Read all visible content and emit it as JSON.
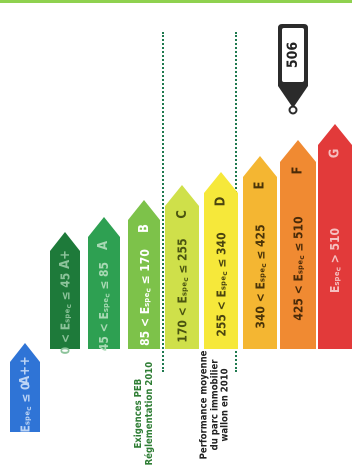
{
  "marker": {
    "value": "506"
  },
  "classes": [
    {
      "letter": "A++",
      "range": "Eₛₚₑ꜀ ≤ 0",
      "color": "#2f74d6",
      "text_color": "#bcd4f5"
    },
    {
      "letter": "A+",
      "range": "0 < Eₛₚₑ꜀ ≤ 45",
      "color": "#1e7a3a",
      "text_color": "#8cc39a"
    },
    {
      "letter": "A",
      "range": "45 < Eₛₚₑ꜀ ≤ 85",
      "color": "#2ea052",
      "text_color": "#a8d9b4"
    },
    {
      "letter": "B",
      "range": "85 < Eₛₚₑ꜀ ≤ 170",
      "color": "#7dc24a",
      "text_color": "#ffffff"
    },
    {
      "letter": "C",
      "range": "170 < Eₛₚₑ꜀ ≤ 255",
      "color": "#cfe04a",
      "text_color": "#4a5410"
    },
    {
      "letter": "D",
      "range": "255 < Eₛₚₑ꜀ ≤ 340",
      "color": "#f6e83a",
      "text_color": "#4a4510"
    },
    {
      "letter": "E",
      "range": "340 < Eₛₚₑ꜀ ≤ 425",
      "color": "#f4b632",
      "text_color": "#4a3408"
    },
    {
      "letter": "F",
      "range": "425 < Eₛₚₑ꜀ ≤ 510",
      "color": "#f08a32",
      "text_color": "#4a2a08"
    },
    {
      "letter": "G",
      "range": "Eₛₚₑ꜀ > 510",
      "color": "#e23a3a",
      "text_color": "#f5c0c0"
    }
  ],
  "captions": {
    "peb": "Exigences PEB\nRéglementation 2010",
    "performance": "Performance moyenne\ndu parc immobilier\nwallon en 2010"
  }
}
